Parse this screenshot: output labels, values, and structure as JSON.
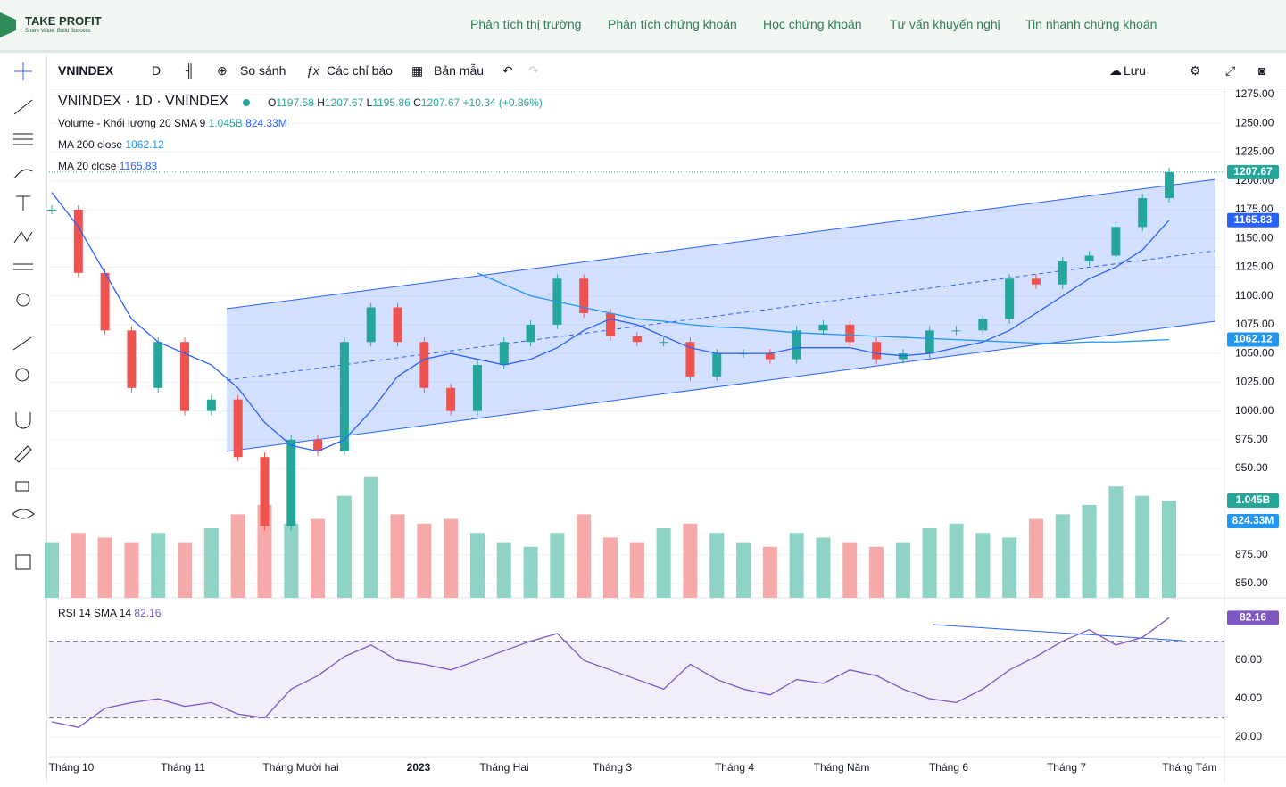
{
  "header": {
    "logo": "TAKE PROFIT",
    "tagline": "Share Value. Build Success",
    "nav": [
      "Phân tích thị trường",
      "Phân tích chứng khoán",
      "Học chứng khoán",
      "Tư vấn khuyến nghị",
      "Tin nhanh chứng khoán"
    ]
  },
  "toolbar": {
    "symbol": "VNINDEX",
    "interval": "D",
    "compare": "So sánh",
    "indicators": "Các chỉ báo",
    "templates": "Bản mẫu",
    "save": "Lưu"
  },
  "legend": {
    "symbol": "VNINDEX",
    "interval": "1D",
    "exchange": "VNINDEX",
    "open_label": "O",
    "open": 1197.58,
    "high_label": "H",
    "high": 1207.67,
    "low_label": "L",
    "low": 1195.86,
    "close_label": "C",
    "change": "+10.34 (+0.86%)",
    "volume_label": "Volume - Khối lượng 20 SMA 9",
    "volume_value": "1.045B",
    "volume_sma": "824.33M",
    "ma200_label": "MA 200 close",
    "ma20_label": "MA 20 close",
    "rsi_label": "RSI 14 SMA 14"
  },
  "chart_data": {
    "type": "candlestick",
    "close": [
      1175,
      1120,
      1070,
      1020,
      1060,
      1000,
      1010,
      960,
      900,
      975,
      965,
      1060,
      1090,
      1060,
      1020,
      1000,
      1040,
      1060,
      1075,
      1115,
      1085,
      1065,
      1060,
      1060,
      1030,
      1050,
      1050,
      1045,
      1070,
      1075,
      1060,
      1045,
      1050,
      1070,
      1070,
      1080,
      1115,
      1110,
      1130,
      1135,
      1160,
      1185,
      1207.67
    ],
    "volume": [
      0.6,
      0.7,
      0.65,
      0.6,
      0.7,
      0.6,
      0.75,
      0.9,
      1.0,
      0.8,
      0.85,
      1.1,
      1.3,
      0.9,
      0.8,
      0.85,
      0.7,
      0.6,
      0.55,
      0.7,
      0.9,
      0.65,
      0.6,
      0.75,
      0.8,
      0.7,
      0.6,
      0.55,
      0.7,
      0.65,
      0.6,
      0.55,
      0.6,
      0.75,
      0.8,
      0.7,
      0.65,
      0.85,
      0.9,
      1.0,
      1.2,
      1.1,
      1.045
    ],
    "ma20": [
      1190,
      1160,
      1120,
      1080,
      1060,
      1050,
      1040,
      1020,
      990,
      970,
      965,
      975,
      1000,
      1030,
      1045,
      1050,
      1045,
      1040,
      1045,
      1055,
      1070,
      1080,
      1075,
      1065,
      1055,
      1050,
      1050,
      1050,
      1055,
      1055,
      1055,
      1050,
      1048,
      1050,
      1055,
      1060,
      1070,
      1085,
      1100,
      1115,
      1125,
      1140,
      1165.83
    ],
    "ma200": [
      null,
      null,
      null,
      null,
      null,
      null,
      null,
      null,
      null,
      null,
      null,
      null,
      null,
      null,
      null,
      null,
      1120,
      1110,
      1100,
      1095,
      1090,
      1085,
      1080,
      1078,
      1075,
      1073,
      1072,
      1070,
      1068,
      1067,
      1066,
      1065,
      1064,
      1063,
      1062,
      1061,
      1060,
      1059,
      1059,
      1060,
      1060,
      1061,
      1062.12
    ],
    "rsi": [
      28,
      25,
      35,
      38,
      40,
      36,
      38,
      32,
      30,
      45,
      52,
      62,
      68,
      60,
      58,
      55,
      60,
      65,
      70,
      74,
      60,
      55,
      50,
      45,
      58,
      50,
      45,
      42,
      50,
      48,
      55,
      52,
      45,
      40,
      38,
      45,
      55,
      62,
      70,
      76,
      68,
      72,
      82.16
    ],
    "ylim": [
      837.6,
      1281.2
    ],
    "yticks": [
      {
        "value": 1275,
        "label": "1275.00"
      },
      {
        "value": 1250,
        "label": "1250.00"
      },
      {
        "value": 1225,
        "label": "1225.00"
      },
      {
        "value": 1200,
        "label": "1200.00"
      },
      {
        "value": 1175,
        "label": "1175.00"
      },
      {
        "value": 1150,
        "label": "1150.00"
      },
      {
        "value": 1125,
        "label": "1125.00"
      },
      {
        "value": 1100,
        "label": "1100.00"
      },
      {
        "value": 1075,
        "label": "1075.00"
      },
      {
        "value": 1050,
        "label": "1050.00"
      },
      {
        "value": 1025,
        "label": "1025.00"
      },
      {
        "value": 1000,
        "label": "1000.00"
      },
      {
        "value": 975,
        "label": "975.00"
      },
      {
        "value": 950,
        "label": "950.00"
      },
      {
        "value": 875,
        "label": "875.00"
      },
      {
        "value": 850,
        "label": "850.00"
      }
    ],
    "rsi_ylim": [
      9.8,
      89.8
    ],
    "rsi_yticks": [
      {
        "value": 60,
        "label": "60.00"
      },
      {
        "value": 40,
        "label": "40.00"
      },
      {
        "value": 20,
        "label": "20.00"
      }
    ],
    "rsi_bands": [
      70,
      30
    ],
    "x_labels": [
      "Tháng 10",
      "Tháng 11",
      "Tháng Mười hai",
      "2023",
      "Tháng Hai",
      "Tháng 3",
      "Tháng 4",
      "Tháng Năm",
      "Tháng 6",
      "Tháng 7",
      "Tháng Tám"
    ],
    "up_color": "#26a69a",
    "down_color": "#ef5350",
    "ma20_color": "#2962ff",
    "ma200_color": "#2196f3",
    "rsi_color": "#7e57c2"
  }
}
